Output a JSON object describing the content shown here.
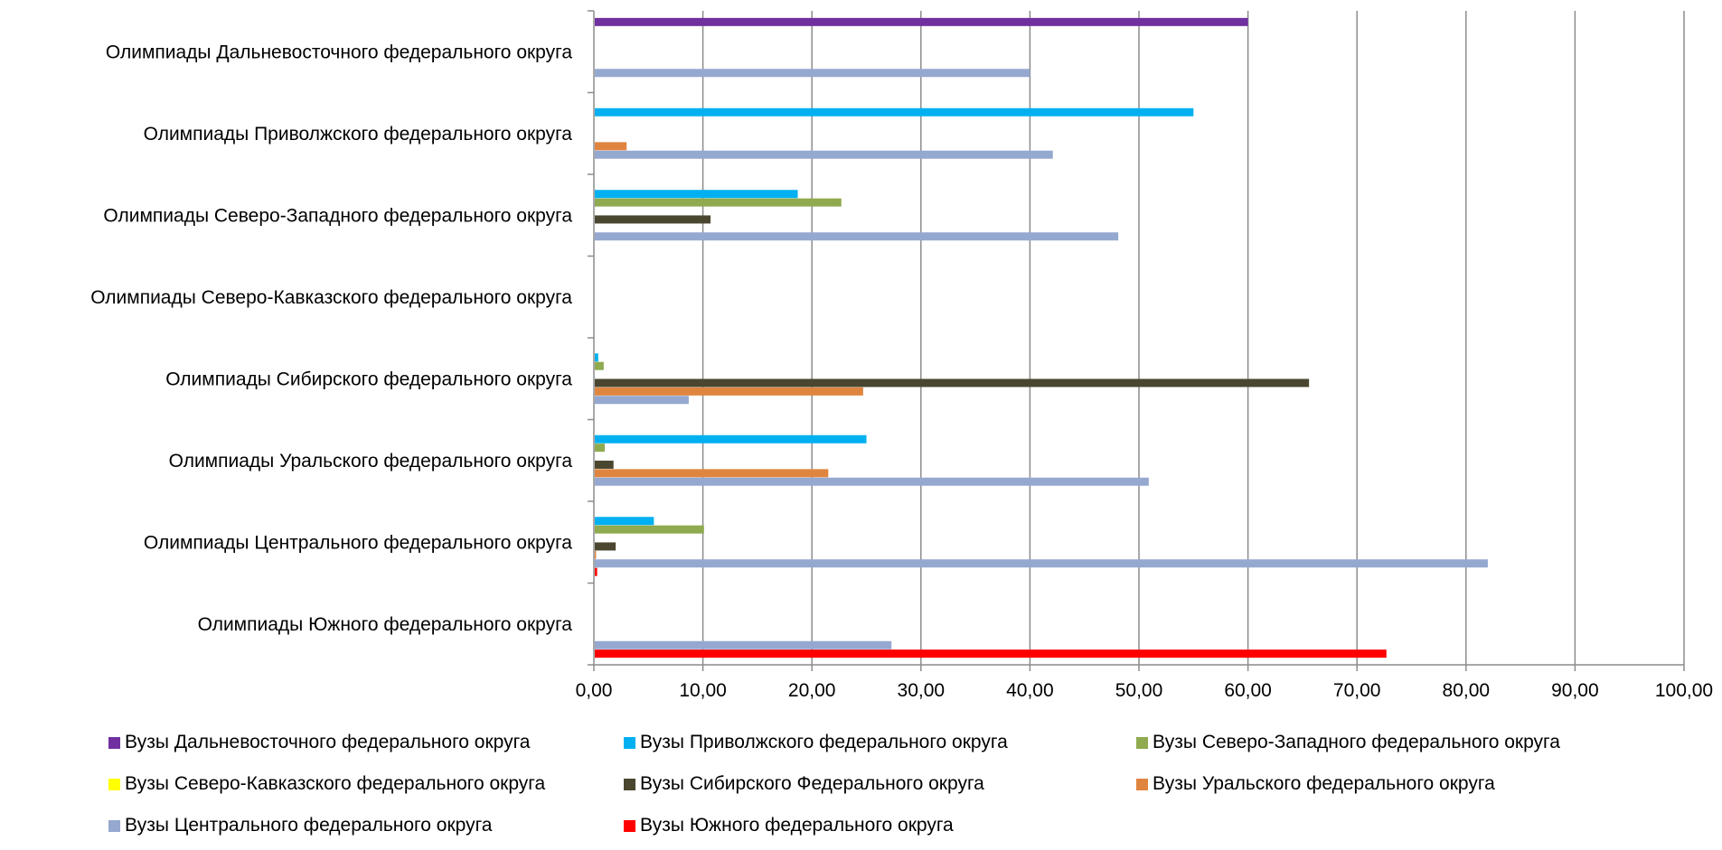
{
  "chart_data": {
    "type": "bar",
    "orientation": "horizontal",
    "categories": [
      "Олимпиады Южного федерального округа",
      "Олимпиады Центрального федерального округа",
      "Олимпиады Уральского федерального округа",
      "Олимпиады Сибирского федерального округа",
      "Олимпиады Северо-Кавказского федерального округа",
      "Олимпиады Северо-Западного федерального округа",
      "Олимпиады Приволжского федерального округа",
      "Олимпиады Дальневосточного федерального округа"
    ],
    "series": [
      {
        "name": "Вузы Южного федерального округа",
        "color": "#FF0000",
        "values": [
          72.7,
          0.3,
          0,
          0,
          0,
          0,
          0,
          0
        ]
      },
      {
        "name": "Вузы Центрального федерального округа",
        "color": "#95A8D0",
        "values": [
          27.3,
          82.0,
          50.9,
          8.7,
          0,
          48.1,
          42.1,
          40.0
        ]
      },
      {
        "name": "Вузы Уральского федерального округа",
        "color": "#E0853F",
        "values": [
          0,
          0.2,
          21.5,
          24.7,
          0,
          0,
          3.0,
          0
        ]
      },
      {
        "name": "Вузы Сибирского Федерального округа",
        "color": "#4A4630",
        "values": [
          0,
          2.0,
          1.8,
          65.6,
          0,
          10.7,
          0,
          0
        ]
      },
      {
        "name": "Вузы Северо-Кавказского федерального округа",
        "color": "#FFFF00",
        "values": [
          0,
          0,
          0,
          0,
          0,
          0,
          0,
          0
        ]
      },
      {
        "name": "Вузы Северо-Западного федерального округа",
        "color": "#8FAA4F",
        "values": [
          0,
          10.1,
          1.0,
          0.9,
          0,
          22.7,
          0,
          0
        ]
      },
      {
        "name": "Вузы Приволжского федерального округа",
        "color": "#00B0F0",
        "values": [
          0,
          5.5,
          25.0,
          0.4,
          0,
          18.7,
          55.0,
          0
        ]
      },
      {
        "name": "Вузы Дальневосточного федерального округа",
        "color": "#7030A0",
        "values": [
          0,
          0,
          0,
          0,
          0,
          0,
          0,
          60.0
        ]
      }
    ],
    "xlim": [
      0,
      100
    ],
    "xticks": [
      "0,00",
      "10,00",
      "20,00",
      "30,00",
      "40,00",
      "50,00",
      "60,00",
      "70,00",
      "80,00",
      "90,00",
      "100,00"
    ],
    "grid": true,
    "legend_position": "bottom",
    "legend_order": [
      "Вузы Дальневосточного федерального округа",
      "Вузы Приволжского федерального округа",
      "Вузы Северо-Западного федерального округа",
      "Вузы Северо-Кавказского федерального округа",
      "Вузы Сибирского Федерального округа",
      "Вузы Уральского федерального округа",
      "Вузы Центрального федерального округа",
      "Вузы Южного федерального округа"
    ]
  }
}
